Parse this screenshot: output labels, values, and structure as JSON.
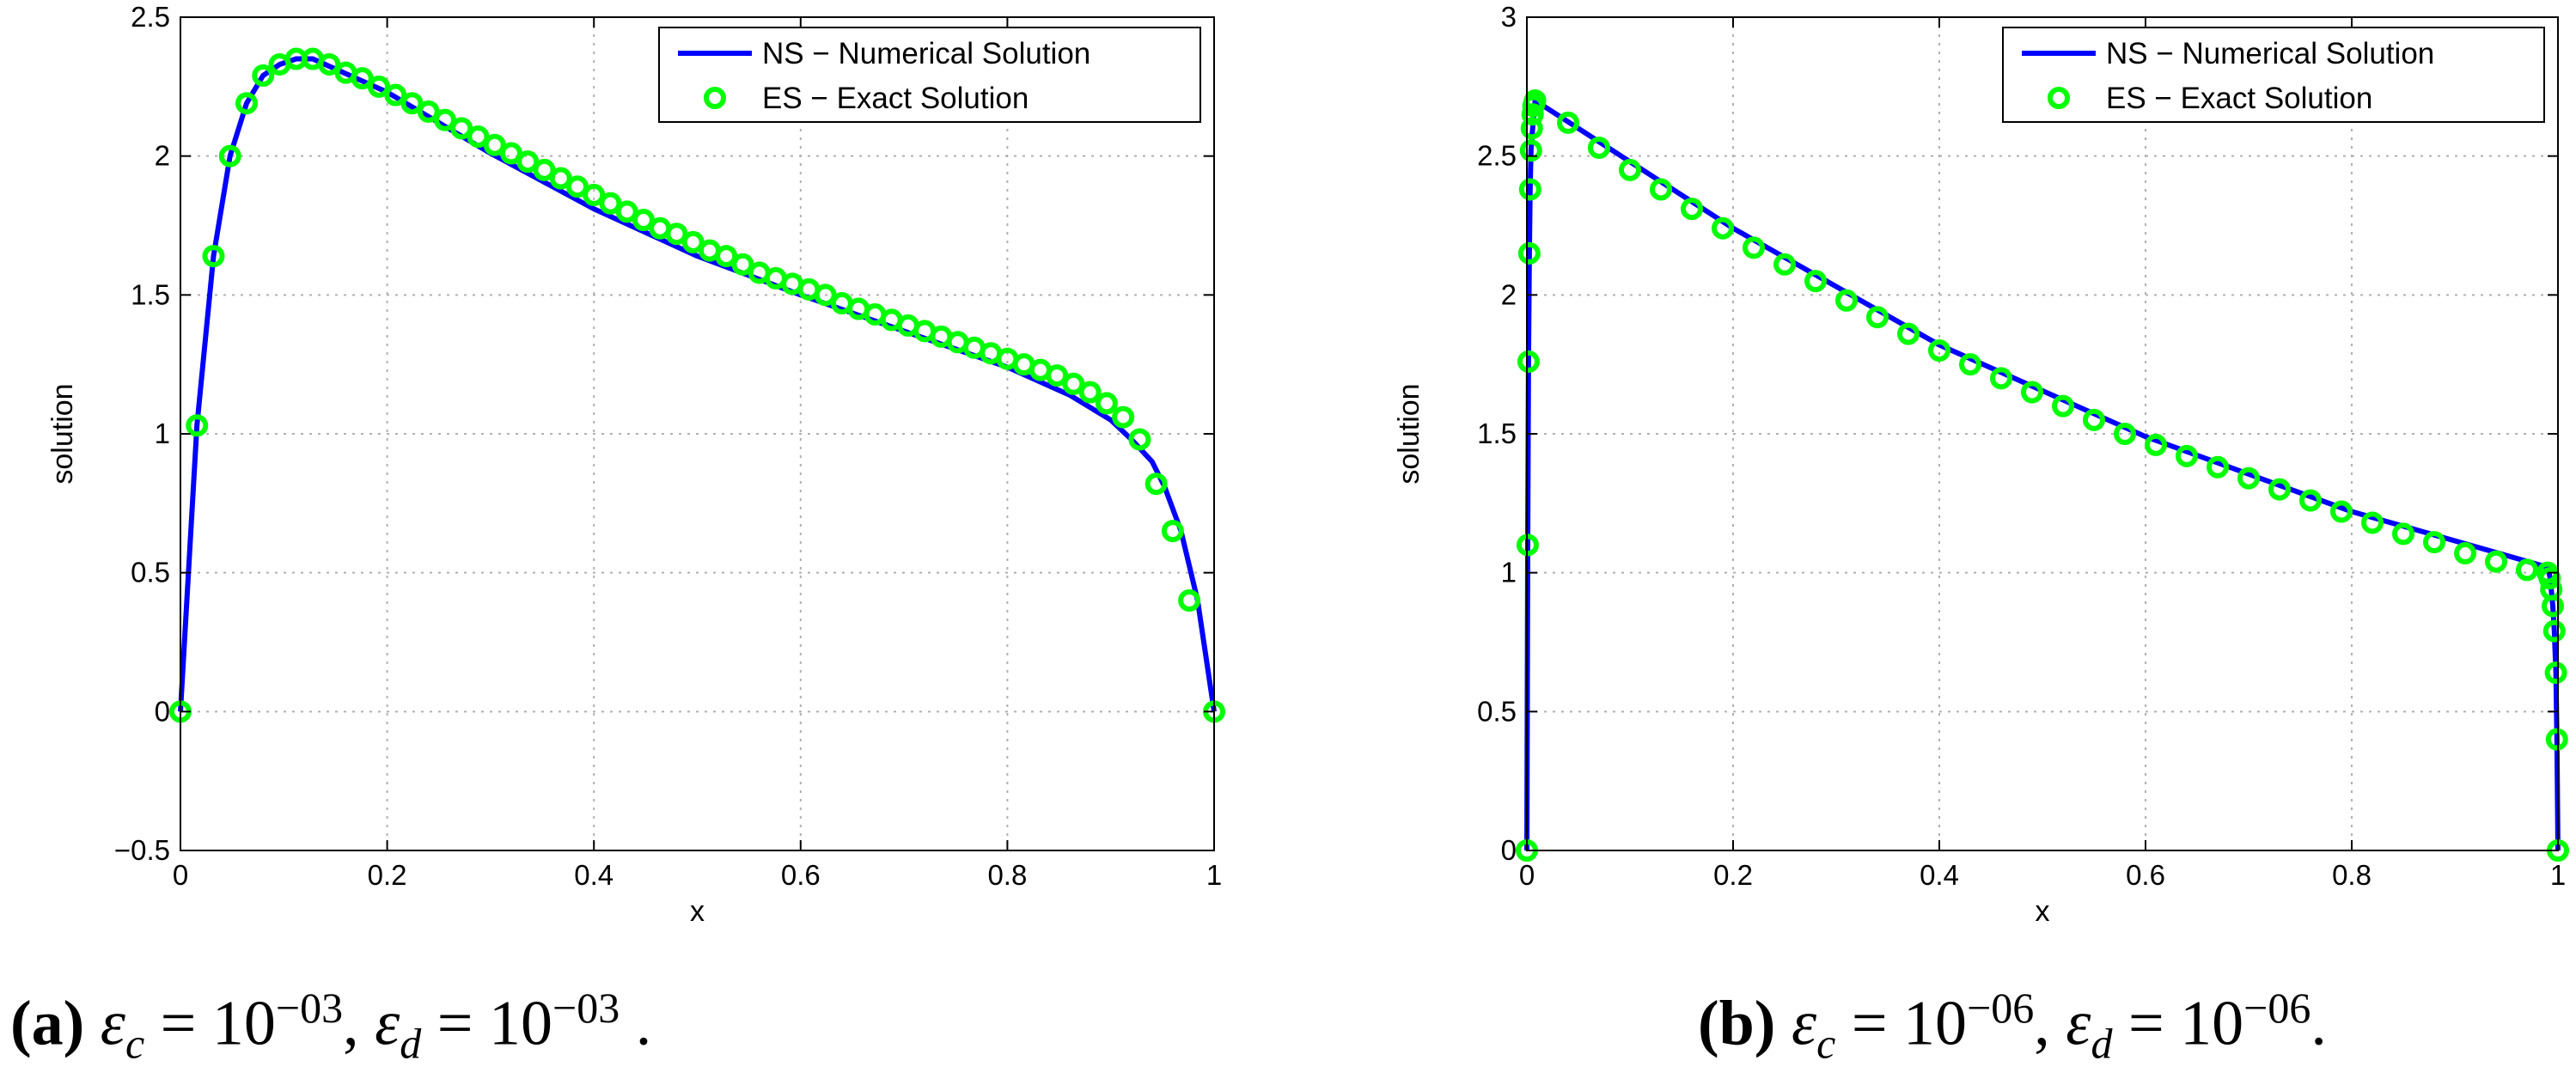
{
  "figure": {
    "caption_a": {
      "tag": "(a)",
      "eps_c": "ε",
      "sub_c": "c",
      "eq": " = 10",
      "exp_c": "−03",
      "sep": ", ",
      "eps_d": "ε",
      "sub_d": "d",
      "eq2": " = 10",
      "exp_d": "−03",
      "end": " ."
    },
    "caption_b": {
      "tag": "(b)",
      "eps_c": "ε",
      "sub_c": "c",
      "eq": " = 10",
      "exp_c": "−06",
      "sep": ", ",
      "eps_d": "ε",
      "sub_d": "d",
      "eq2": " = 10",
      "exp_d": "−06",
      "end": "."
    }
  },
  "colors": {
    "numerical": "#0000ff",
    "exact": "#00ff00",
    "grid": "#b0b0b0"
  },
  "chart_data": [
    {
      "type": "line",
      "panel": "a",
      "xlabel": "x",
      "ylabel": "solution",
      "xlim": [
        0,
        1
      ],
      "ylim": [
        -0.5,
        2.5
      ],
      "xticks": [
        0,
        0.2,
        0.4,
        0.6,
        0.8,
        1
      ],
      "xtick_labels": [
        "0",
        "0.2",
        "0.4",
        "0.6",
        "0.8",
        "1"
      ],
      "yticks": [
        -0.5,
        0,
        0.5,
        1,
        1.5,
        2,
        2.5
      ],
      "ytick_labels": [
        "−0.5",
        "0",
        "0.5",
        "1",
        "1.5",
        "2",
        "2.5"
      ],
      "grid": true,
      "legend_position": "top-right",
      "series": [
        {
          "name": "NS − Numerical Solution",
          "style": "line",
          "x": [
            0,
            0.016,
            0.032,
            0.048,
            0.064,
            0.08,
            0.096,
            0.112,
            0.128,
            0.2,
            0.3,
            0.4,
            0.5,
            0.6,
            0.7,
            0.8,
            0.86,
            0.9,
            0.92,
            0.94,
            0.952,
            0.968,
            0.984,
            1
          ],
          "y": [
            0,
            1.03,
            1.64,
            2.0,
            2.19,
            2.29,
            2.33,
            2.35,
            2.35,
            2.23,
            2.01,
            1.81,
            1.64,
            1.5,
            1.37,
            1.24,
            1.14,
            1.05,
            0.98,
            0.9,
            0.81,
            0.65,
            0.4,
            0
          ]
        },
        {
          "name": "ES − Exact Solution",
          "style": "markers",
          "x": [
            0,
            0.016,
            0.032,
            0.048,
            0.064,
            0.08,
            0.096,
            0.112,
            0.128,
            0.144,
            0.16,
            0.176,
            0.192,
            0.208,
            0.224,
            0.24,
            0.256,
            0.272,
            0.288,
            0.304,
            0.32,
            0.336,
            0.352,
            0.368,
            0.384,
            0.4,
            0.416,
            0.432,
            0.448,
            0.464,
            0.48,
            0.496,
            0.512,
            0.528,
            0.544,
            0.56,
            0.576,
            0.592,
            0.608,
            0.624,
            0.64,
            0.656,
            0.672,
            0.688,
            0.704,
            0.72,
            0.736,
            0.752,
            0.768,
            0.784,
            0.8,
            0.816,
            0.832,
            0.848,
            0.864,
            0.88,
            0.896,
            0.912,
            0.928,
            0.944,
            0.96,
            0.976,
            1
          ],
          "y": [
            0,
            1.03,
            1.64,
            2.0,
            2.19,
            2.29,
            2.33,
            2.35,
            2.35,
            2.33,
            2.3,
            2.28,
            2.25,
            2.22,
            2.19,
            2.16,
            2.13,
            2.1,
            2.07,
            2.04,
            2.01,
            1.98,
            1.95,
            1.92,
            1.89,
            1.86,
            1.83,
            1.8,
            1.77,
            1.74,
            1.72,
            1.69,
            1.66,
            1.64,
            1.61,
            1.58,
            1.56,
            1.54,
            1.52,
            1.5,
            1.47,
            1.45,
            1.43,
            1.41,
            1.39,
            1.37,
            1.35,
            1.33,
            1.31,
            1.29,
            1.27,
            1.25,
            1.23,
            1.21,
            1.18,
            1.15,
            1.11,
            1.06,
            0.98,
            0.82,
            0.65,
            0.4,
            0
          ]
        }
      ]
    },
    {
      "type": "line",
      "panel": "b",
      "xlabel": "x",
      "ylabel": "solution",
      "xlim": [
        0,
        1
      ],
      "ylim": [
        0,
        3
      ],
      "xticks": [
        0,
        0.2,
        0.4,
        0.6,
        0.8,
        1
      ],
      "xtick_labels": [
        "0",
        "0.2",
        "0.4",
        "0.6",
        "0.8",
        "1"
      ],
      "yticks": [
        0,
        0.5,
        1,
        1.5,
        2,
        2.5,
        3
      ],
      "ytick_labels": [
        "0",
        "0.5",
        "1",
        "1.5",
        "2",
        "2.5",
        "3"
      ],
      "grid": true,
      "legend_position": "top-right",
      "series": [
        {
          "name": "NS − Numerical Solution",
          "style": "line",
          "x": [
            0,
            0.0008,
            0.0016,
            0.0024,
            0.0032,
            0.004,
            0.006,
            0.008,
            0.2,
            0.4,
            0.6,
            0.8,
            0.99,
            0.9925,
            0.995,
            0.9965,
            0.998,
            0.999,
            1
          ],
          "y": [
            0,
            1.1,
            1.76,
            2.15,
            2.38,
            2.52,
            2.62,
            2.7,
            2.24,
            1.82,
            1.49,
            1.22,
            1.02,
            0.98,
            0.88,
            0.79,
            0.64,
            0.4,
            0
          ]
        },
        {
          "name": "ES − Exact Solution",
          "style": "markers",
          "x": [
            0,
            0.0008,
            0.0016,
            0.0024,
            0.0032,
            0.004,
            0.0048,
            0.0056,
            0.0064,
            0.0072,
            0.008,
            0.04,
            0.07,
            0.1,
            0.13,
            0.16,
            0.19,
            0.22,
            0.25,
            0.28,
            0.31,
            0.34,
            0.37,
            0.4,
            0.43,
            0.46,
            0.49,
            0.52,
            0.55,
            0.58,
            0.61,
            0.64,
            0.67,
            0.7,
            0.73,
            0.76,
            0.79,
            0.82,
            0.85,
            0.88,
            0.91,
            0.94,
            0.97,
            0.99,
            0.992,
            0.9935,
            0.995,
            0.9965,
            0.998,
            0.999,
            1
          ],
          "y": [
            0,
            1.1,
            1.76,
            2.15,
            2.38,
            2.52,
            2.6,
            2.65,
            2.68,
            2.69,
            2.7,
            2.62,
            2.53,
            2.45,
            2.38,
            2.31,
            2.24,
            2.17,
            2.11,
            2.05,
            1.98,
            1.92,
            1.86,
            1.8,
            1.75,
            1.7,
            1.65,
            1.6,
            1.55,
            1.5,
            1.46,
            1.42,
            1.38,
            1.34,
            1.3,
            1.26,
            1.22,
            1.18,
            1.14,
            1.11,
            1.07,
            1.04,
            1.01,
            1.0,
            0.98,
            0.94,
            0.88,
            0.79,
            0.64,
            0.4,
            0
          ]
        }
      ]
    }
  ]
}
